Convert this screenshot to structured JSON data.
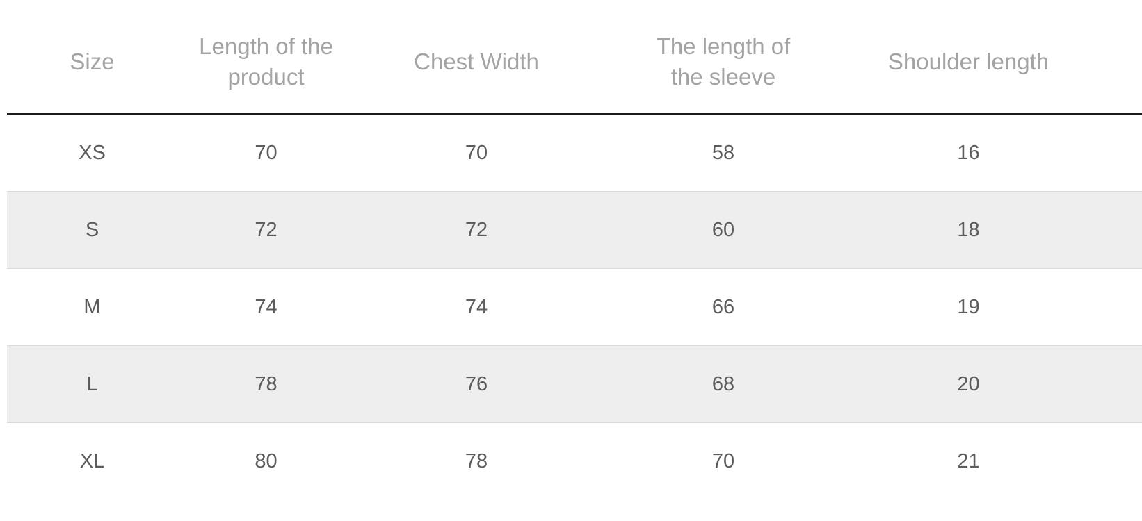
{
  "table": {
    "headers": [
      [
        "Size"
      ],
      [
        "Length of the",
        "product"
      ],
      [
        "Chest Width"
      ],
      [
        "The length of",
        "the sleeve"
      ],
      [
        "Shoulder length"
      ]
    ],
    "rows": [
      {
        "size": "XS",
        "values": [
          "70",
          "70",
          "58",
          "16"
        ],
        "shaded": false
      },
      {
        "size": "S",
        "values": [
          "72",
          "72",
          "60",
          "18"
        ],
        "shaded": true
      },
      {
        "size": "M",
        "values": [
          "74",
          "74",
          "66",
          "19"
        ],
        "shaded": false
      },
      {
        "size": "L",
        "values": [
          "78",
          "76",
          "68",
          "20"
        ],
        "shaded": true
      },
      {
        "size": "XL",
        "values": [
          "80",
          "78",
          "70",
          "21"
        ],
        "shaded": false
      }
    ],
    "colors": {
      "header_text": "#a3a3a3",
      "cell_text": "#5c5c5c",
      "shaded_row": "#eeeeee",
      "header_rule": "#1a1a1a",
      "row_rule": "#d9d9d9"
    }
  }
}
